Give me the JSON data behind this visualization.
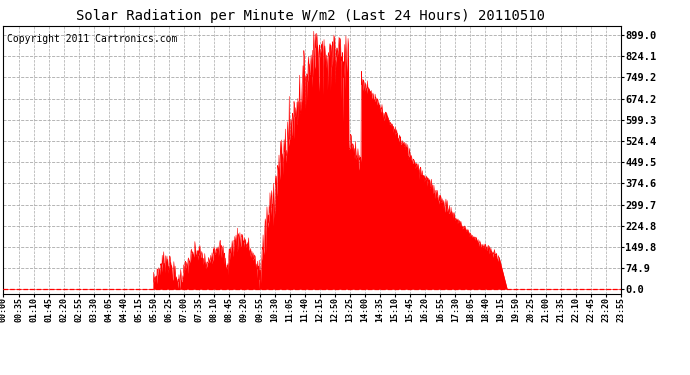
{
  "title": "Solar Radiation per Minute W/m2 (Last 24 Hours) 20110510",
  "copyright_text": "Copyright 2011 Cartronics.com",
  "y_ticks": [
    0.0,
    74.9,
    149.8,
    224.8,
    299.7,
    374.6,
    449.5,
    524.4,
    599.3,
    674.2,
    749.2,
    824.1,
    899.0
  ],
  "y_max": 930,
  "y_min": -18,
  "bar_color": "#FF0000",
  "background_color": "#FFFFFF",
  "plot_bg_color": "#FFFFFF",
  "grid_color": "#AAAAAA",
  "border_color": "#000000",
  "dashed_line_color": "#FF0000",
  "title_fontsize": 10,
  "copyright_fontsize": 7,
  "tick_fontsize": 7.5,
  "x_tick_labels": [
    "00:00",
    "00:35",
    "01:10",
    "01:45",
    "02:20",
    "02:55",
    "03:30",
    "04:05",
    "04:40",
    "05:15",
    "05:50",
    "06:25",
    "07:00",
    "07:35",
    "08:10",
    "08:45",
    "09:20",
    "09:55",
    "10:30",
    "11:05",
    "11:40",
    "12:15",
    "12:50",
    "13:25",
    "14:00",
    "14:35",
    "15:10",
    "15:45",
    "16:20",
    "16:55",
    "17:30",
    "18:05",
    "18:40",
    "19:15",
    "19:50",
    "20:25",
    "21:00",
    "21:35",
    "22:10",
    "22:45",
    "23:20",
    "23:55"
  ]
}
